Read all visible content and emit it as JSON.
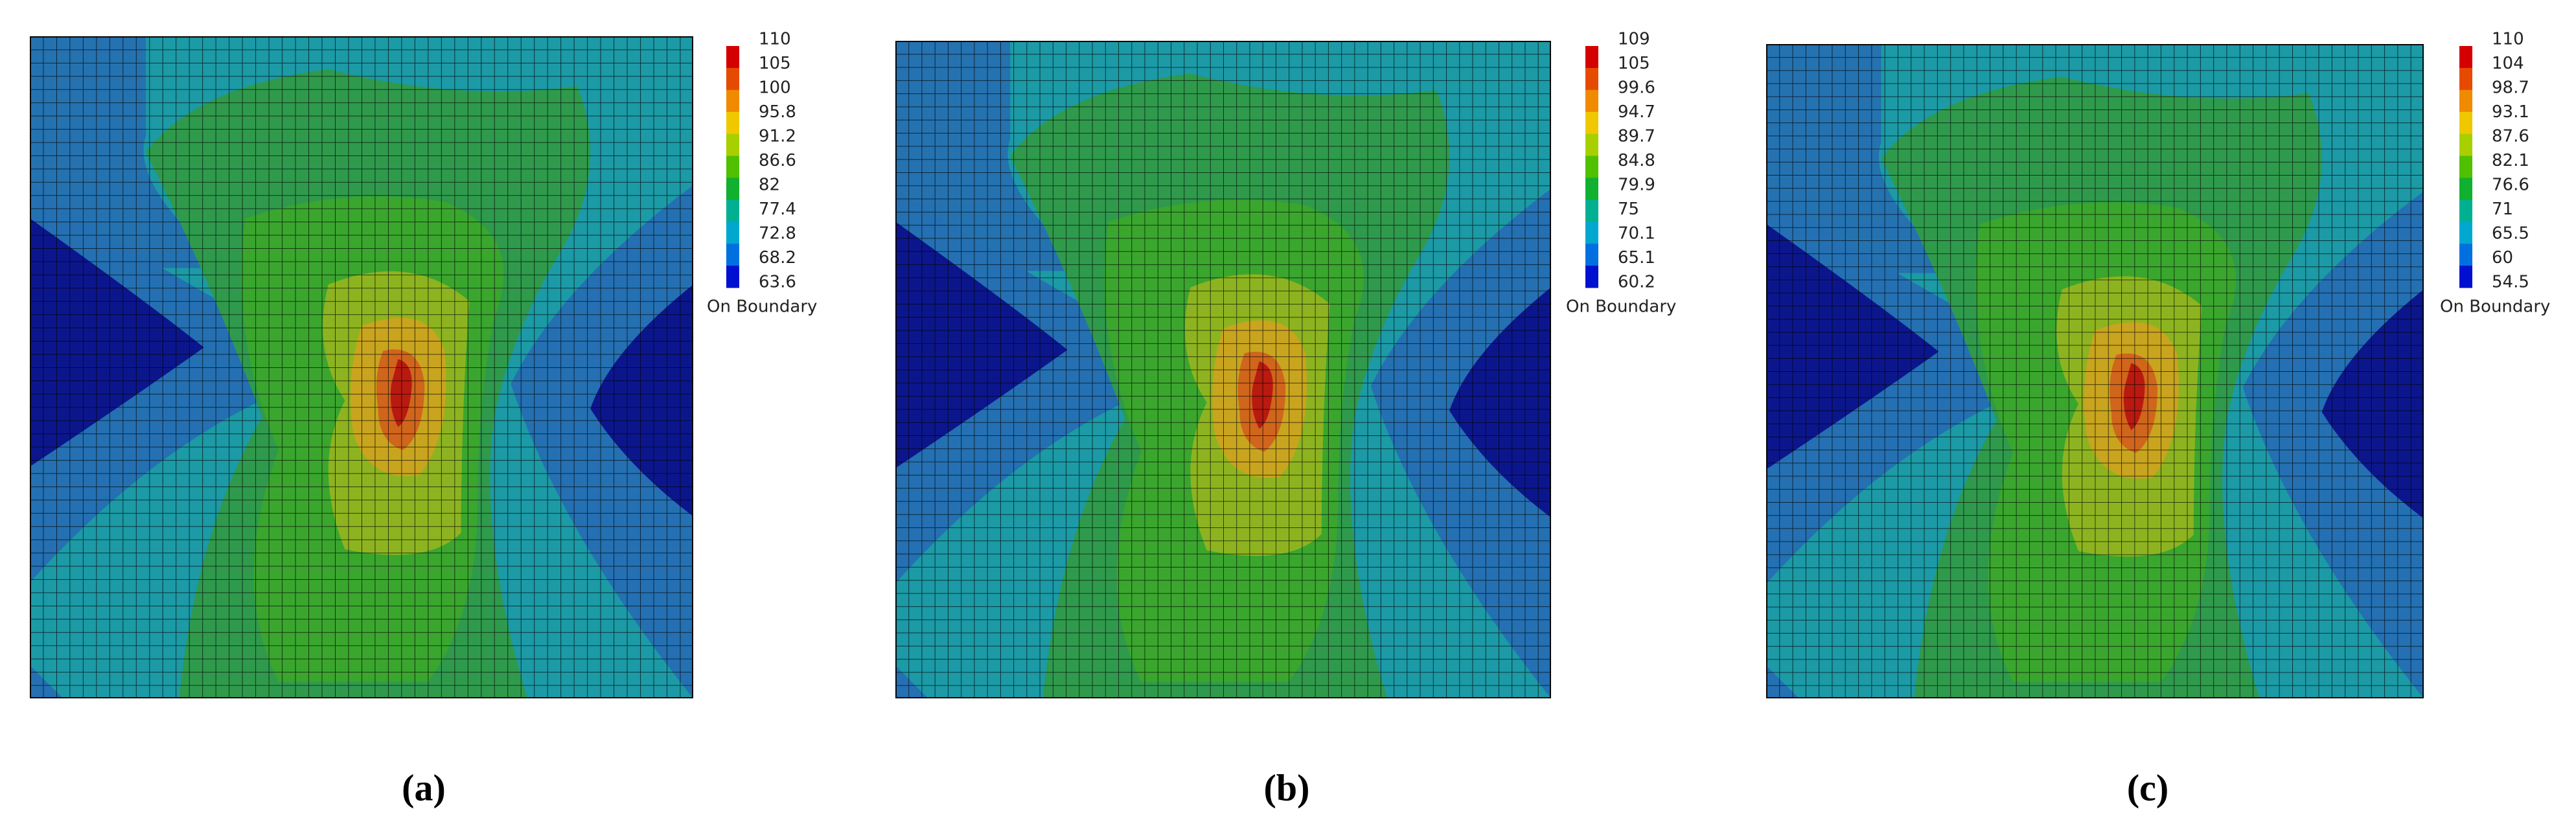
{
  "panels": [
    {
      "caption": "(a)",
      "legend": {
        "labels": [
          "110",
          "105",
          "100",
          "95.8",
          "91.2",
          "86.6",
          "82",
          "77.4",
          "72.8",
          "68.2",
          "63.6"
        ],
        "boundary": "On Boundary"
      }
    },
    {
      "caption": "(b)",
      "legend": {
        "labels": [
          "109",
          "105",
          "99.6",
          "94.7",
          "89.7",
          "84.8",
          "79.9",
          "75",
          "70.1",
          "65.1",
          "60.2"
        ],
        "boundary": "On Boundary"
      }
    },
    {
      "caption": "(c)",
      "legend": {
        "labels": [
          "110",
          "104",
          "98.7",
          "93.1",
          "87.6",
          "82.1",
          "76.6",
          "71",
          "65.5",
          "60",
          "54.5"
        ],
        "boundary": "On Boundary"
      }
    }
  ]
}
